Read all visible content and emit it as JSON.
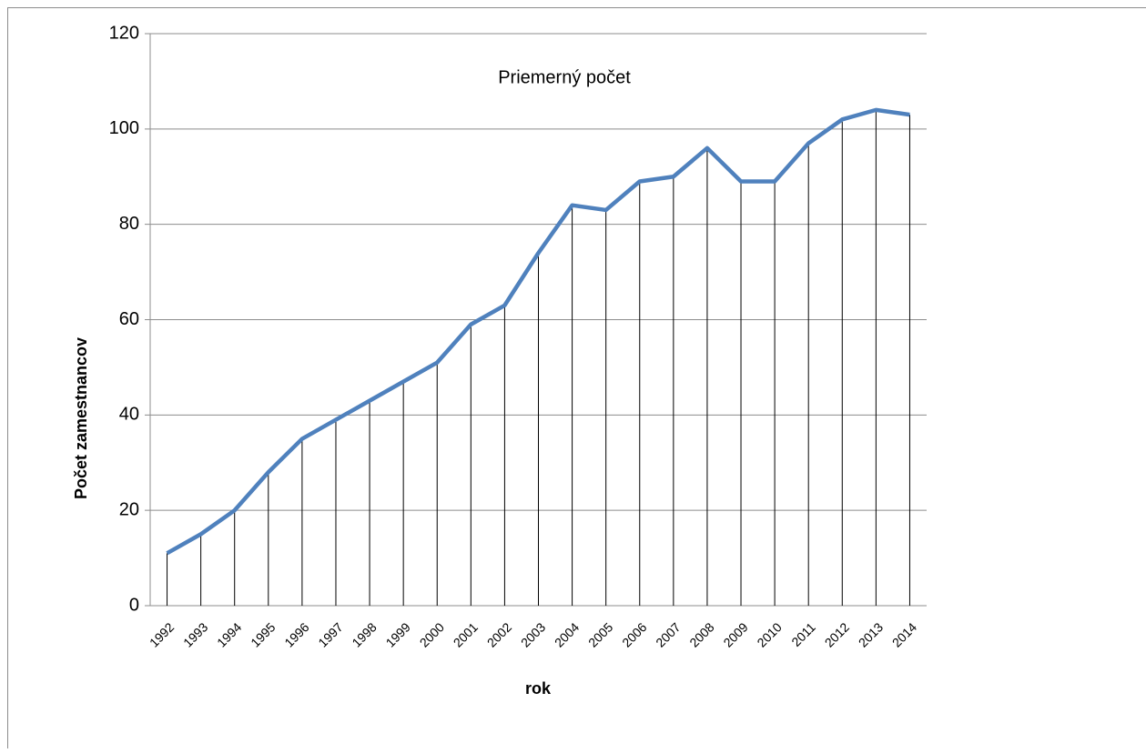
{
  "chart_data": {
    "type": "line",
    "title": "Priemerný počet",
    "x_label": "rok",
    "y_label": "Počet zamestnancov",
    "categories": [
      "1992",
      "1993",
      "1994",
      "1995",
      "1996",
      "1997",
      "1998",
      "1999",
      "2000",
      "2001",
      "2002",
      "2003",
      "2004",
      "2005",
      "2006",
      "2007",
      "2008",
      "2009",
      "2010",
      "2011",
      "2012",
      "2013",
      "2014"
    ],
    "series": [
      {
        "name": "Priemerný počet",
        "color": "#4f81bd",
        "values": [
          11,
          15,
          20,
          28,
          35,
          39,
          43,
          47,
          51,
          59,
          63,
          74,
          84,
          83,
          89,
          90,
          96,
          89,
          89,
          97,
          102,
          104,
          103
        ]
      }
    ],
    "drop_lines": true,
    "ylim": [
      0,
      120
    ],
    "yticks": [
      0,
      20,
      40,
      60,
      80,
      100,
      120
    ],
    "grid": true
  }
}
